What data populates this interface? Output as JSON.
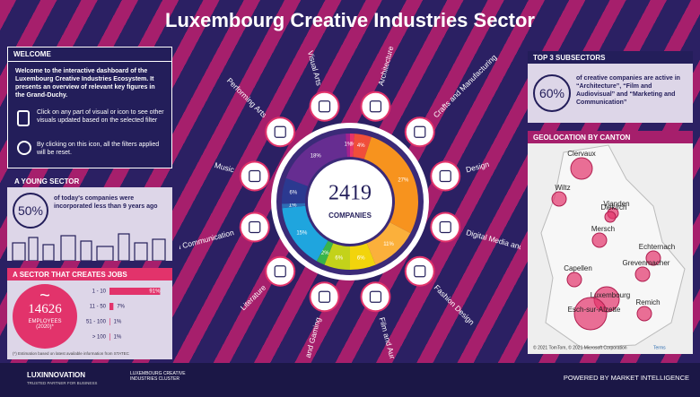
{
  "title": "Luxembourg Creative Industries Sector",
  "welcome": {
    "heading": "WELCOME",
    "intro": "Welcome to the interactive dashboard of the Luxembourg Creative Industries Ecosystem. It presents an overview of relevant key figures in the Grand-Duchy.",
    "click_hint": "Click on any part of visual or icon to see other visuals updated based on the selected filter",
    "reset_hint": "By clicking on this icon, all the filters applied will be reset."
  },
  "young_sector": {
    "heading": "A YOUNG SECTOR",
    "value": "50%",
    "text": "of today's companies were incorporated less than 9 years ago"
  },
  "jobs": {
    "heading": "A SECTOR THAT CREATES JOBS",
    "employees": 14626,
    "employees_label": "EMPLOYEES (2020)*",
    "footnote": "(*) Estimation based on latest available information from STATEC"
  },
  "top3": {
    "heading": "TOP 3 SUBSECTORS",
    "value": "60%",
    "text": "of creative companies are active in “Architecture”, “Film and Audiovisual” and “Marketing and Communication”"
  },
  "geo": {
    "heading": "GEOLOCATION BY CANTON",
    "cantons": [
      "Clervaux",
      "Wiltz",
      "Vianden",
      "Diekirch",
      "Echternach",
      "Mersch",
      "Grevenmacher",
      "Capellen",
      "Luxembourg",
      "Esch-sur-Alzette",
      "Remich"
    ],
    "attribution": "© 2021 TomTom, © 2021 Microsoft Corporation",
    "terms": "Terms"
  },
  "subsectors": [
    "Architecture",
    "Crafts and Manufacturing",
    "Design",
    "Digital Media and Publishing",
    "Fashion Design",
    "Film and Audiovisual",
    "Interactive Media and Gaming",
    "Literature",
    "Marketing and Communication",
    "Music",
    "Performing Arts",
    "Visual Arts"
  ],
  "chart_data": [
    {
      "type": "bar",
      "categories": [
        "1 - 10",
        "11 - 50",
        "51 - 100",
        "> 100"
      ],
      "values": [
        91,
        7,
        1,
        1
      ],
      "value_labels": [
        "91%",
        "7%",
        "1%",
        "1%"
      ],
      "color": "#e2336b"
    },
    {
      "type": "pie",
      "center_value": 2419,
      "center_label": "COMPANIES",
      "values": [
        1,
        4,
        27,
        11,
        6,
        6,
        2,
        15,
        1,
        6,
        18,
        1
      ],
      "value_labels": [
        "1%",
        "4%",
        "27%",
        "11%",
        "6%",
        "6%",
        "2%",
        "15%",
        "1%",
        "6%",
        "18%",
        "1%"
      ],
      "colors": [
        "#e8336a",
        "#f04e3a",
        "#f7931e",
        "#fbb03b",
        "#f2d40c",
        "#c3d21a",
        "#39b54a",
        "#1fa5de",
        "#2e6db5",
        "#2b3990",
        "#662d91",
        "#a3218f"
      ]
    }
  ],
  "footer": {
    "brand": "LUXINNOVATION",
    "brand_tagline": "TRUSTED PARTNER FOR BUSINESS",
    "cluster": "LUXEMBOURG CREATIVE INDUSTRIES CLUSTER",
    "powered": "POWERED BY MARKET INTELLIGENCE"
  }
}
